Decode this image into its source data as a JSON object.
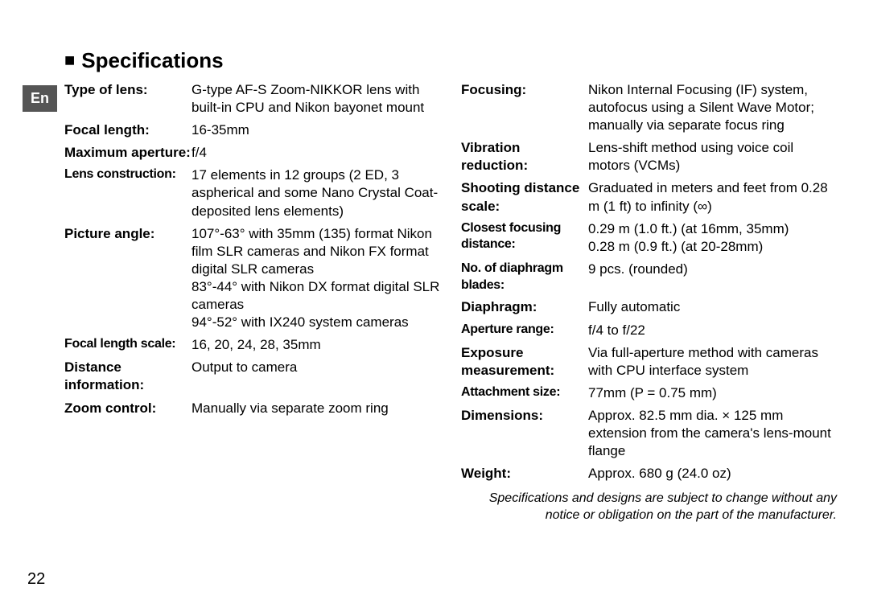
{
  "lang_tab": "En",
  "heading": "Specifications",
  "page_number": "22",
  "left_specs": [
    {
      "label": "Type of lens:",
      "value": "G-type AF-S Zoom-NIKKOR lens with built-in CPU and Nikon bayonet mount"
    },
    {
      "label": "Focal length:",
      "value": "16-35mm"
    },
    {
      "label": "Maximum aperture:",
      "value": "f/4"
    },
    {
      "label": "Lens construction:",
      "value": "17 elements in 12 groups (2 ED, 3 aspherical and some Nano Crystal Coat-deposited lens elements)",
      "narrow": true
    },
    {
      "label": "Picture angle:",
      "value": "107°-63° with 35mm (135) format Nikon film SLR cameras and Nikon FX format digital SLR cameras\n83°-44° with Nikon DX format digital SLR cameras\n94°-52° with IX240 system cameras"
    },
    {
      "label": "Focal length scale:",
      "value": "16, 20, 24, 28, 35mm",
      "narrow": true
    },
    {
      "label": "Distance information:",
      "value": "Output to camera"
    },
    {
      "label": "Zoom control:",
      "value": "Manually via separate zoom ring"
    }
  ],
  "right_specs": [
    {
      "label": "Focusing:",
      "value": "Nikon Internal Focusing (IF) system, autofocus using a Silent Wave Motor; manually via separate focus ring"
    },
    {
      "label": "Vibration reduction:",
      "value": "Lens-shift method using voice coil motors (VCMs)"
    },
    {
      "label": "Shooting distance scale:",
      "value": "Graduated in meters and feet from 0.28 m (1 ft) to infinity (∞)"
    },
    {
      "label": "Closest focusing distance:",
      "value": "0.29 m (1.0 ft.) (at 16mm, 35mm)\n0.28 m (0.9 ft.) (at 20-28mm)",
      "narrow": true
    },
    {
      "label": "No. of diaphragm blades:",
      "value": "9 pcs. (rounded)",
      "narrow": true
    },
    {
      "label": "Diaphragm:",
      "value": "Fully automatic"
    },
    {
      "label": "Aperture range:",
      "value": "f/4 to f/22",
      "narrow": true
    },
    {
      "label": "Exposure measurement:",
      "value": "Via full-aperture method with cameras with CPU interface system"
    },
    {
      "label": "Attachment size:",
      "value": "77mm (P = 0.75 mm)",
      "narrow": true
    },
    {
      "label": "Dimensions:",
      "value": "Approx. 82.5 mm dia. × 125 mm extension from the camera's lens-mount flange"
    },
    {
      "label": "Weight:",
      "value": "Approx. 680 g (24.0 oz)"
    }
  ],
  "footnote": "Specifications and designs are subject to change without any notice or obligation on the part of the manufacturer."
}
